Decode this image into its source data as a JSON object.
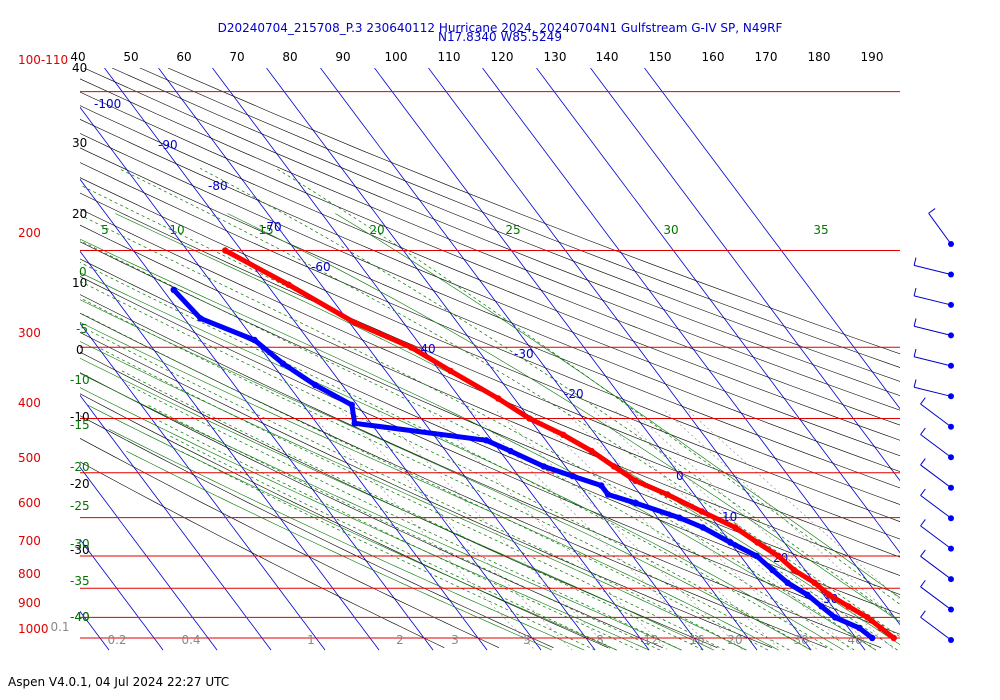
{
  "header": {
    "title_line1": "D20240704_215708_P.3 230640112 Hurricane 2024, 20240704N1 Gulfstream G-IV SP, N49RF",
    "title_line2": "N17.8340 W85.5249"
  },
  "footer": {
    "text": "Aspen V4.0.1, 04 Jul 2024  22:27 UTC"
  },
  "chart_data": {
    "type": "skew-t",
    "title": "D20240704_215708_P.3 230640112 Hurricane 2024, 20240704N1 Gulfstream G-IV SP, N49RF",
    "subtitle": "N17.8340 W85.5249",
    "pressure_range_hpa": [
      1000,
      100
    ],
    "pressure_axis": {
      "scale": "log",
      "color": "#e00000",
      "labels": [
        "100-110",
        "200",
        "300",
        "400",
        "500",
        "600",
        "700",
        "800",
        "900",
        "1000"
      ]
    },
    "pressure_lines_hpa": [
      110,
      209,
      309,
      412,
      513,
      615,
      718,
      818,
      920,
      1000
    ],
    "top_ticks": [
      "40",
      "50",
      "60",
      "70",
      "80",
      "90",
      "100",
      "110",
      "120",
      "130",
      "140",
      "150",
      "160",
      "170",
      "180",
      "190"
    ],
    "left_black_labels": [
      "40",
      "30",
      "20",
      "10",
      "0",
      "-10",
      "-20",
      "-30",
      "-40"
    ],
    "theta_e_labels": [
      "5",
      "10",
      "15",
      "20",
      "25",
      "30",
      "35"
    ],
    "mixing_ratio_left_labels": [
      "0",
      "-5",
      "-10",
      "-15",
      "-20",
      "-25",
      "-30",
      "-35",
      "-40"
    ],
    "isotherm_labels": [
      "-100",
      "-90",
      "-80",
      "-70",
      "-60",
      "-40",
      "-30",
      "-20",
      "0",
      "10",
      "20",
      "30"
    ],
    "bottom_labels": [
      "0.1",
      "0.2",
      "0.4",
      "1",
      "2",
      "3",
      "5",
      "8",
      "12",
      "16",
      "20",
      "30",
      "40"
    ],
    "series": [
      {
        "name": "temperature",
        "color": "#ff0000",
        "points": [
          [
            209,
            -43
          ],
          [
            240,
            -36
          ],
          [
            280,
            -29
          ],
          [
            309,
            -22
          ],
          [
            340,
            -18
          ],
          [
            380,
            -13
          ],
          [
            412,
            -10
          ],
          [
            440,
            -6
          ],
          [
            470,
            -3
          ],
          [
            500,
            -1
          ],
          [
            530,
            1
          ],
          [
            560,
            5
          ],
          [
            600,
            9
          ],
          [
            640,
            13
          ],
          [
            680,
            15
          ],
          [
            718,
            17
          ],
          [
            760,
            18
          ],
          [
            800,
            20
          ],
          [
            840,
            21
          ],
          [
            880,
            23
          ],
          [
            920,
            25
          ],
          [
            960,
            26
          ],
          [
            1000,
            27
          ]
        ]
      },
      {
        "name": "dewpoint",
        "color": "#0000ff",
        "points": [
          [
            245,
            -58
          ],
          [
            275,
            -57
          ],
          [
            300,
            -50
          ],
          [
            330,
            -48
          ],
          [
            360,
            -45
          ],
          [
            390,
            -41
          ],
          [
            420,
            -43
          ],
          [
            450,
            -21
          ],
          [
            470,
            -18
          ],
          [
            500,
            -14
          ],
          [
            520,
            -10
          ],
          [
            540,
            -6
          ],
          [
            560,
            -6
          ],
          [
            580,
            -2
          ],
          [
            615,
            4
          ],
          [
            640,
            7
          ],
          [
            680,
            10
          ],
          [
            718,
            13
          ],
          [
            760,
            14
          ],
          [
            800,
            15
          ],
          [
            840,
            17
          ],
          [
            880,
            18
          ],
          [
            920,
            19
          ],
          [
            960,
            22
          ],
          [
            1000,
            23
          ]
        ]
      }
    ],
    "wind_barbs": {
      "count": 14
    },
    "grid": true,
    "colors": {
      "isobar": "#e00000",
      "isotherm": "#0000cc",
      "dry_adiabat": "#000000",
      "moist_adiabat": "#007700",
      "mixing_ratio": "#888888",
      "temperature": "#ff0000",
      "dewpoint": "#0000ff"
    }
  }
}
